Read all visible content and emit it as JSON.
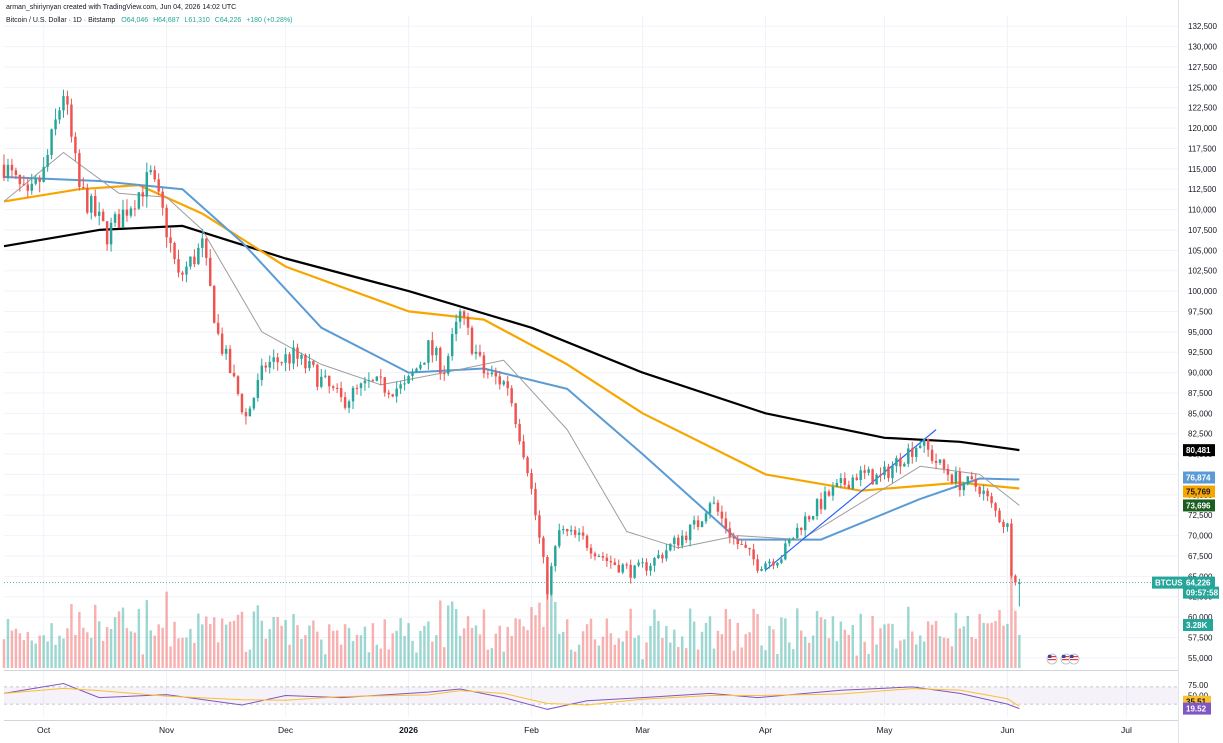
{
  "header": {
    "author_line": "arman_shiriynyan created with TradingView.com, Jun 04, 2026 14:02 UTC",
    "symbol_line": "Bitcoin / U.S. Dollar · 1D · Bitstamp",
    "ohlc": {
      "open_label": "O64,046",
      "high_label": "H64,687",
      "low_label": "L61,310",
      "close_label": "C64,226",
      "change_label": "+180 (+0.28%)"
    }
  },
  "colors": {
    "up": "#26a69a",
    "down": "#ef5350",
    "sma200": "#000000",
    "sma100": "#f7a600",
    "ema50": "#5b9bd5",
    "sma20": "#9e9e9e",
    "trendline": "#2962ff",
    "rsi_line": "#7e57c2",
    "rsi_ma": "#fbc02d"
  },
  "price_axis": {
    "ticks": [
      "132,500",
      "130,000",
      "127,500",
      "125,000",
      "122,500",
      "120,000",
      "117,500",
      "115,000",
      "112,500",
      "110,000",
      "107,500",
      "105,000",
      "102,500",
      "100,000",
      "97,500",
      "95,000",
      "92,500",
      "90,000",
      "87,500",
      "85,000",
      "82,500",
      "80,000",
      "77,500",
      "75,000",
      "72,500",
      "70,000",
      "67,500",
      "65,000",
      "62,500",
      "60,000",
      "57,500",
      "55,000"
    ]
  },
  "rsi_axis": {
    "ticks": [
      "75.00",
      "50.00",
      "25.00"
    ]
  },
  "time_axis": {
    "labels": [
      "Oct",
      "Nov",
      "Dec",
      "2026",
      "Feb",
      "Mar",
      "Apr",
      "May",
      "Jun",
      "Jul"
    ]
  },
  "tags": {
    "sma200": "80,481",
    "ema50": "76,874",
    "sma100": "75,769",
    "sma20": "73,696",
    "symbol": "BTCUSD",
    "price": "64,226",
    "countdown": "09:57:58",
    "volume": "3.28K",
    "rsi_ma": "35.51",
    "rsi": "19.52"
  },
  "chart_data": {
    "type": "candlestick",
    "title": "Bitcoin / U.S. Dollar · 1D · Bitstamp",
    "xlabel": "",
    "ylabel": "",
    "ylim": [
      53750,
      133750
    ],
    "grid": true,
    "x_range": [
      "2025-09-21",
      "2026-07-14"
    ],
    "last_candle": {
      "date": "2026-06-04",
      "open": 64046,
      "high": 64687,
      "low": 61310,
      "close": 64226,
      "change": 180,
      "change_pct": 0.28
    },
    "close_path": [
      [
        "2025-09-21",
        115500
      ],
      [
        "2025-09-27",
        111000
      ],
      [
        "2025-10-01",
        114500
      ],
      [
        "2025-10-06",
        124500
      ],
      [
        "2025-10-10",
        112500
      ],
      [
        "2025-10-17",
        107000
      ],
      [
        "2025-10-24",
        111500
      ],
      [
        "2025-10-28",
        114000
      ],
      [
        "2025-10-31",
        109500
      ],
      [
        "2025-11-04",
        101500
      ],
      [
        "2025-11-10",
        105500
      ],
      [
        "2025-11-14",
        94500
      ],
      [
        "2025-11-21",
        84500
      ],
      [
        "2025-11-26",
        91000
      ],
      [
        "2025-12-03",
        92000
      ],
      [
        "2025-12-08",
        90000
      ],
      [
        "2025-12-15",
        86500
      ],
      [
        "2025-12-22",
        88500
      ],
      [
        "2025-12-31",
        88000
      ],
      [
        "2026-01-06",
        93000
      ],
      [
        "2026-01-10",
        90500
      ],
      [
        "2026-01-14",
        97000
      ],
      [
        "2026-01-20",
        90000
      ],
      [
        "2026-01-26",
        88500
      ],
      [
        "2026-01-31",
        78500
      ],
      [
        "2026-02-05",
        63500
      ],
      [
        "2026-02-08",
        70500
      ],
      [
        "2026-02-14",
        69500
      ],
      [
        "2026-02-20",
        67000
      ],
      [
        "2026-02-27",
        65500
      ],
      [
        "2026-03-04",
        67000
      ],
      [
        "2026-03-10",
        69500
      ],
      [
        "2026-03-15",
        71500
      ],
      [
        "2026-03-18",
        74500
      ],
      [
        "2026-03-24",
        69500
      ],
      [
        "2026-03-30",
        66500
      ],
      [
        "2026-04-05",
        67500
      ],
      [
        "2026-04-10",
        71500
      ],
      [
        "2026-04-17",
        75000
      ],
      [
        "2026-04-24",
        77500
      ],
      [
        "2026-04-30",
        77000
      ],
      [
        "2026-05-05",
        79500
      ],
      [
        "2026-05-10",
        81500
      ],
      [
        "2026-05-15",
        78500
      ],
      [
        "2026-05-20",
        76500
      ],
      [
        "2026-05-25",
        76000
      ],
      [
        "2026-05-28",
        73500
      ],
      [
        "2026-06-01",
        71000
      ],
      [
        "2026-06-02",
        66000
      ],
      [
        "2026-06-04",
        64226
      ]
    ],
    "series": [
      {
        "name": "",
        "role": "sma200",
        "points": [
          [
            "2025-09-21",
            105500
          ],
          [
            "2025-10-15",
            107500
          ],
          [
            "2025-11-05",
            108000
          ],
          [
            "2025-12-01",
            104000
          ],
          [
            "2026-01-01",
            100000
          ],
          [
            "2026-02-01",
            95500
          ],
          [
            "2026-03-01",
            90000
          ],
          [
            "2026-04-01",
            85000
          ],
          [
            "2026-05-01",
            82000
          ],
          [
            "2026-05-20",
            81500
          ],
          [
            "2026-06-04",
            80481
          ]
        ]
      },
      {
        "name": "",
        "role": "sma100",
        "points": [
          [
            "2025-09-21",
            111000
          ],
          [
            "2025-10-10",
            112500
          ],
          [
            "2025-10-25",
            113000
          ],
          [
            "2025-11-10",
            109500
          ],
          [
            "2025-12-01",
            103000
          ],
          [
            "2026-01-01",
            97500
          ],
          [
            "2026-01-20",
            96500
          ],
          [
            "2026-02-10",
            91000
          ],
          [
            "2026-03-01",
            85000
          ],
          [
            "2026-04-01",
            77500
          ],
          [
            "2026-04-25",
            75500
          ],
          [
            "2026-05-20",
            76500
          ],
          [
            "2026-06-04",
            75769
          ]
        ]
      },
      {
        "name": "",
        "role": "ema50",
        "points": [
          [
            "2025-09-21",
            114000
          ],
          [
            "2025-10-15",
            113500
          ],
          [
            "2025-11-05",
            112500
          ],
          [
            "2025-11-20",
            106000
          ],
          [
            "2025-12-10",
            95500
          ],
          [
            "2026-01-01",
            90000
          ],
          [
            "2026-01-20",
            90500
          ],
          [
            "2026-02-10",
            88000
          ],
          [
            "2026-03-01",
            80000
          ],
          [
            "2026-03-25",
            69500
          ],
          [
            "2026-04-15",
            69500
          ],
          [
            "2026-05-10",
            74500
          ],
          [
            "2026-05-25",
            77000
          ],
          [
            "2026-06-04",
            76874
          ]
        ]
      },
      {
        "name": "",
        "role": "sma20",
        "points": [
          [
            "2025-09-21",
            111000
          ],
          [
            "2025-10-06",
            117000
          ],
          [
            "2025-10-20",
            112000
          ],
          [
            "2025-11-01",
            111500
          ],
          [
            "2025-11-10",
            107500
          ],
          [
            "2025-11-25",
            95000
          ],
          [
            "2025-12-10",
            91000
          ],
          [
            "2025-12-25",
            88500
          ],
          [
            "2026-01-10",
            90000
          ],
          [
            "2026-01-25",
            91500
          ],
          [
            "2026-02-10",
            83000
          ],
          [
            "2026-02-25",
            70500
          ],
          [
            "2026-03-10",
            68500
          ],
          [
            "2026-03-25",
            70000
          ],
          [
            "2026-04-10",
            69500
          ],
          [
            "2026-04-25",
            74000
          ],
          [
            "2026-05-10",
            78500
          ],
          [
            "2026-05-25",
            77500
          ],
          [
            "2026-06-04",
            73696
          ]
        ]
      },
      {
        "name": "",
        "role": "trendline",
        "points": [
          [
            "2026-04-01",
            65750
          ],
          [
            "2026-05-14",
            83000
          ]
        ]
      }
    ],
    "volume_panel": {
      "last_volume": "3.28K"
    },
    "rsi": {
      "ylim": [
        0,
        100
      ],
      "levels": [
        70,
        30
      ],
      "value": 19.52,
      "ma_value": 35.51,
      "points": [
        [
          "2025-09-21",
          55
        ],
        [
          "2025-10-06",
          78
        ],
        [
          "2025-10-15",
          45
        ],
        [
          "2025-11-01",
          52
        ],
        [
          "2025-11-20",
          28
        ],
        [
          "2025-12-01",
          50
        ],
        [
          "2025-12-15",
          45
        ],
        [
          "2026-01-06",
          58
        ],
        [
          "2026-01-14",
          65
        ],
        [
          "2026-01-25",
          45
        ],
        [
          "2026-02-05",
          18
        ],
        [
          "2026-02-15",
          38
        ],
        [
          "2026-03-01",
          45
        ],
        [
          "2026-03-18",
          55
        ],
        [
          "2026-03-30",
          45
        ],
        [
          "2026-04-20",
          62
        ],
        [
          "2026-05-08",
          70
        ],
        [
          "2026-05-20",
          55
        ],
        [
          "2026-06-01",
          30
        ],
        [
          "2026-06-04",
          19.52
        ]
      ]
    }
  }
}
